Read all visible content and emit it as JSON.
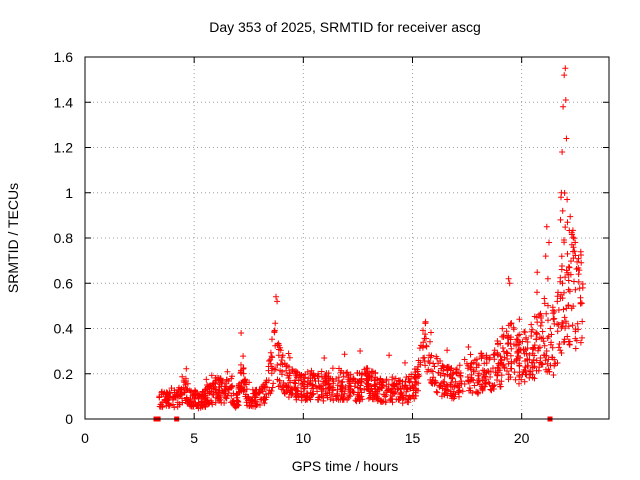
{
  "chart_data": {
    "type": "scatter",
    "title": "Day 353 of 2025, SRMTID for receiver ascg",
    "xlabel": "GPS time / hours",
    "ylabel": "SRMTID / TECUs",
    "xlim": [
      0,
      24
    ],
    "ylim": [
      0,
      1.6
    ],
    "x_ticks": [
      0,
      5,
      10,
      15,
      20
    ],
    "y_ticks": [
      0,
      0.2,
      0.4,
      0.6,
      0.8,
      1,
      1.2,
      1.4,
      1.6
    ],
    "x_tick_labels": [
      "0",
      "5",
      "10",
      "15",
      "20"
    ],
    "y_tick_labels": [
      "0",
      "0.2",
      "0.4",
      "0.6",
      "0.8",
      "1",
      "1.2",
      "1.4",
      "1.6"
    ],
    "grid": true,
    "marker": "plus",
    "series_color": "#ff0000",
    "baseline_markers_x": [
      3.25,
      3.35,
      4.2,
      21.3
    ],
    "series": [
      {
        "name": "SRMTID",
        "profile": [
          [
            3.4,
            0.1
          ],
          [
            3.6,
            0.09
          ],
          [
            3.8,
            0.08
          ],
          [
            4.0,
            0.1
          ],
          [
            4.2,
            0.08
          ],
          [
            4.5,
            0.14
          ],
          [
            4.8,
            0.1
          ],
          [
            5.0,
            0.09
          ],
          [
            5.3,
            0.08
          ],
          [
            5.6,
            0.1
          ],
          [
            6.0,
            0.13
          ],
          [
            6.3,
            0.12
          ],
          [
            6.6,
            0.12
          ],
          [
            7.0,
            0.08
          ],
          [
            7.2,
            0.22
          ],
          [
            7.4,
            0.1
          ],
          [
            7.8,
            0.09
          ],
          [
            8.2,
            0.11
          ],
          [
            8.5,
            0.2
          ],
          [
            8.7,
            0.3
          ],
          [
            9.0,
            0.2
          ],
          [
            9.5,
            0.16
          ],
          [
            10.0,
            0.14
          ],
          [
            10.5,
            0.16
          ],
          [
            11.0,
            0.14
          ],
          [
            11.5,
            0.15
          ],
          [
            12.0,
            0.15
          ],
          [
            12.5,
            0.14
          ],
          [
            13.0,
            0.16
          ],
          [
            13.5,
            0.13
          ],
          [
            14.0,
            0.13
          ],
          [
            14.5,
            0.12
          ],
          [
            15.0,
            0.14
          ],
          [
            15.3,
            0.2
          ],
          [
            15.6,
            0.35
          ],
          [
            16.0,
            0.22
          ],
          [
            16.5,
            0.16
          ],
          [
            17.0,
            0.16
          ],
          [
            17.5,
            0.18
          ],
          [
            18.0,
            0.2
          ],
          [
            18.5,
            0.21
          ],
          [
            19.0,
            0.25
          ],
          [
            19.5,
            0.3
          ],
          [
            20.0,
            0.27
          ],
          [
            20.5,
            0.3
          ],
          [
            21.0,
            0.38
          ],
          [
            21.5,
            0.35
          ],
          [
            22.0,
            0.6
          ],
          [
            22.5,
            0.55
          ],
          [
            22.8,
            0.5
          ]
        ]
      }
    ]
  }
}
